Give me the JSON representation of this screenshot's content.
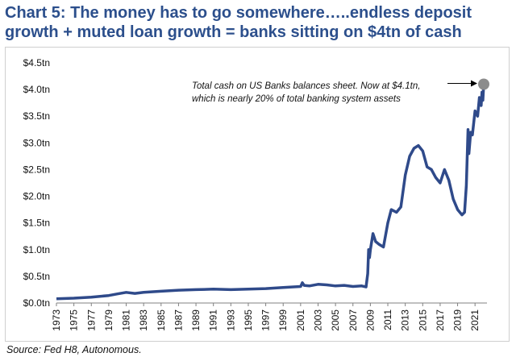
{
  "title": "Chart 5: The money has to go somewhere…..endless deposit growth + muted loan growth = banks sitting on $4tn of cash",
  "source": "Source: Fed H8, Autonomous.",
  "colors": {
    "title": "#2c4f8c",
    "line": "#2f4a8a",
    "marker": "#8c8c8c"
  },
  "chart_data": {
    "type": "line",
    "title": "Chart 5: The money has to go somewhere…..endless deposit growth + muted loan growth = banks sitting on $4tn of cash",
    "xlabel": "",
    "ylabel": "",
    "xlim": [
      1973,
      2022
    ],
    "ylim": [
      0,
      4.5
    ],
    "grid": false,
    "y_tick_values": [
      0,
      0.5,
      1.0,
      1.5,
      2.0,
      2.5,
      3.0,
      3.5,
      4.0,
      4.5
    ],
    "y_tick_labels": [
      "$0.0tn",
      "$0.5tn",
      "$1.0tn",
      "$1.5tn",
      "$2.0tn",
      "$2.5tn",
      "$3.0tn",
      "$3.5tn",
      "$4.0tn",
      "$4.5tn"
    ],
    "x_tick_values": [
      1973,
      1975,
      1977,
      1979,
      1981,
      1983,
      1985,
      1987,
      1989,
      1991,
      1993,
      1995,
      1997,
      1999,
      2001,
      2003,
      2005,
      2007,
      2009,
      2011,
      2013,
      2015,
      2017,
      2019,
      2021
    ],
    "x_tick_labels": [
      "1973",
      "1975",
      "1977",
      "1979",
      "1981",
      "1983",
      "1985",
      "1987",
      "1989",
      "1991",
      "1993",
      "1995",
      "1997",
      "1999",
      "2001",
      "2003",
      "2005",
      "2007",
      "2009",
      "2011",
      "2013",
      "2015",
      "2017",
      "2019",
      "2021"
    ],
    "series": [
      {
        "name": "Total cash on US Banks balance sheet ($tn)",
        "x": [
          1973,
          1975,
          1977,
          1979,
          1980,
          1981,
          1982,
          1983,
          1985,
          1987,
          1989,
          1991,
          1993,
          1995,
          1997,
          1999,
          2000,
          2001,
          2001.2,
          2001.4,
          2002,
          2003,
          2004,
          2005,
          2006,
          2007,
          2008,
          2008.5,
          2008.7,
          2008.8,
          2008.9,
          2009,
          2009.3,
          2009.6,
          2010,
          2010.5,
          2011,
          2011.4,
          2012,
          2012.5,
          2013,
          2013.5,
          2014,
          2014.5,
          2015,
          2015.5,
          2016,
          2016.5,
          2017,
          2017.5,
          2018,
          2018.5,
          2019,
          2019.5,
          2019.8,
          2020,
          2020.2,
          2020.3,
          2020.5,
          2020.7,
          2021,
          2021.3,
          2021.5,
          2021.7,
          2021.8,
          2021.9,
          2022
        ],
        "values": [
          0.08,
          0.09,
          0.11,
          0.14,
          0.17,
          0.2,
          0.18,
          0.2,
          0.22,
          0.24,
          0.25,
          0.26,
          0.25,
          0.26,
          0.27,
          0.29,
          0.3,
          0.31,
          0.38,
          0.33,
          0.32,
          0.35,
          0.34,
          0.32,
          0.33,
          0.31,
          0.32,
          0.3,
          0.55,
          1.0,
          0.85,
          1.0,
          1.3,
          1.15,
          1.1,
          1.05,
          1.5,
          1.75,
          1.7,
          1.8,
          2.4,
          2.75,
          2.9,
          2.95,
          2.85,
          2.55,
          2.5,
          2.35,
          2.25,
          2.5,
          2.3,
          1.95,
          1.75,
          1.65,
          1.7,
          2.2,
          3.25,
          2.8,
          3.2,
          3.15,
          3.6,
          3.5,
          3.85,
          3.7,
          3.95,
          3.8,
          4.1
        ]
      }
    ],
    "marker_point": {
      "x": 2022,
      "y": 4.1
    },
    "annotations": [
      "Total cash on US Banks balances sheet.  Now at $4.1tn,",
      "which is nearly 20% of total banking system assets"
    ]
  }
}
